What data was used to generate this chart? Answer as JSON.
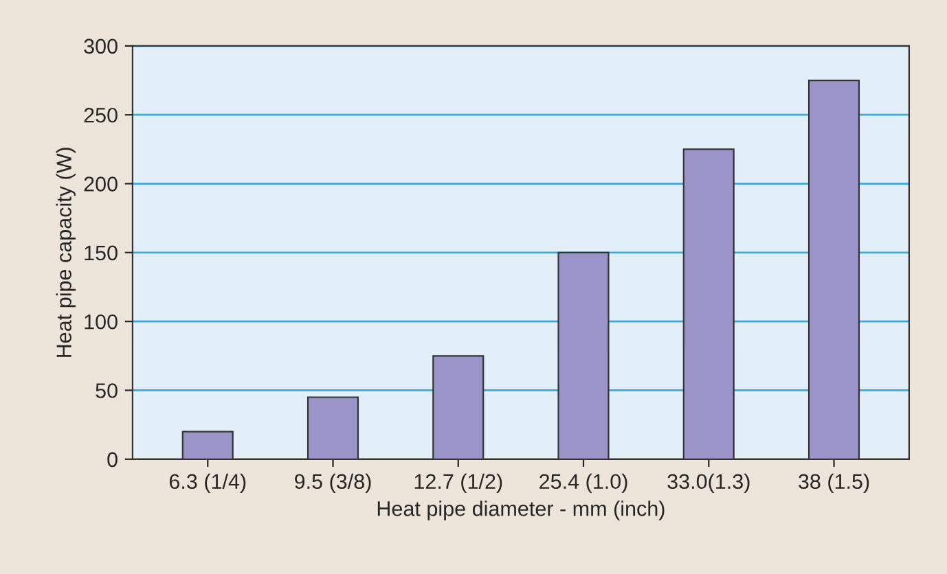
{
  "chart_data": {
    "type": "bar",
    "xlabel": "Heat pipe diameter - mm (inch)",
    "ylabel": "Heat pipe capacity (W)",
    "categories": [
      "6.3 (1/4)",
      "9.5 (3/8)",
      "12.7 (1/2)",
      "25.4 (1.0)",
      "33.0(1.3)",
      "38 (1.5)"
    ],
    "values": [
      20,
      45,
      75,
      150,
      225,
      275
    ],
    "color": "#9b94c8",
    "ylim": [
      0,
      300
    ],
    "yticks": [
      0,
      50,
      100,
      150,
      200,
      250,
      300
    ],
    "grid": "y"
  }
}
